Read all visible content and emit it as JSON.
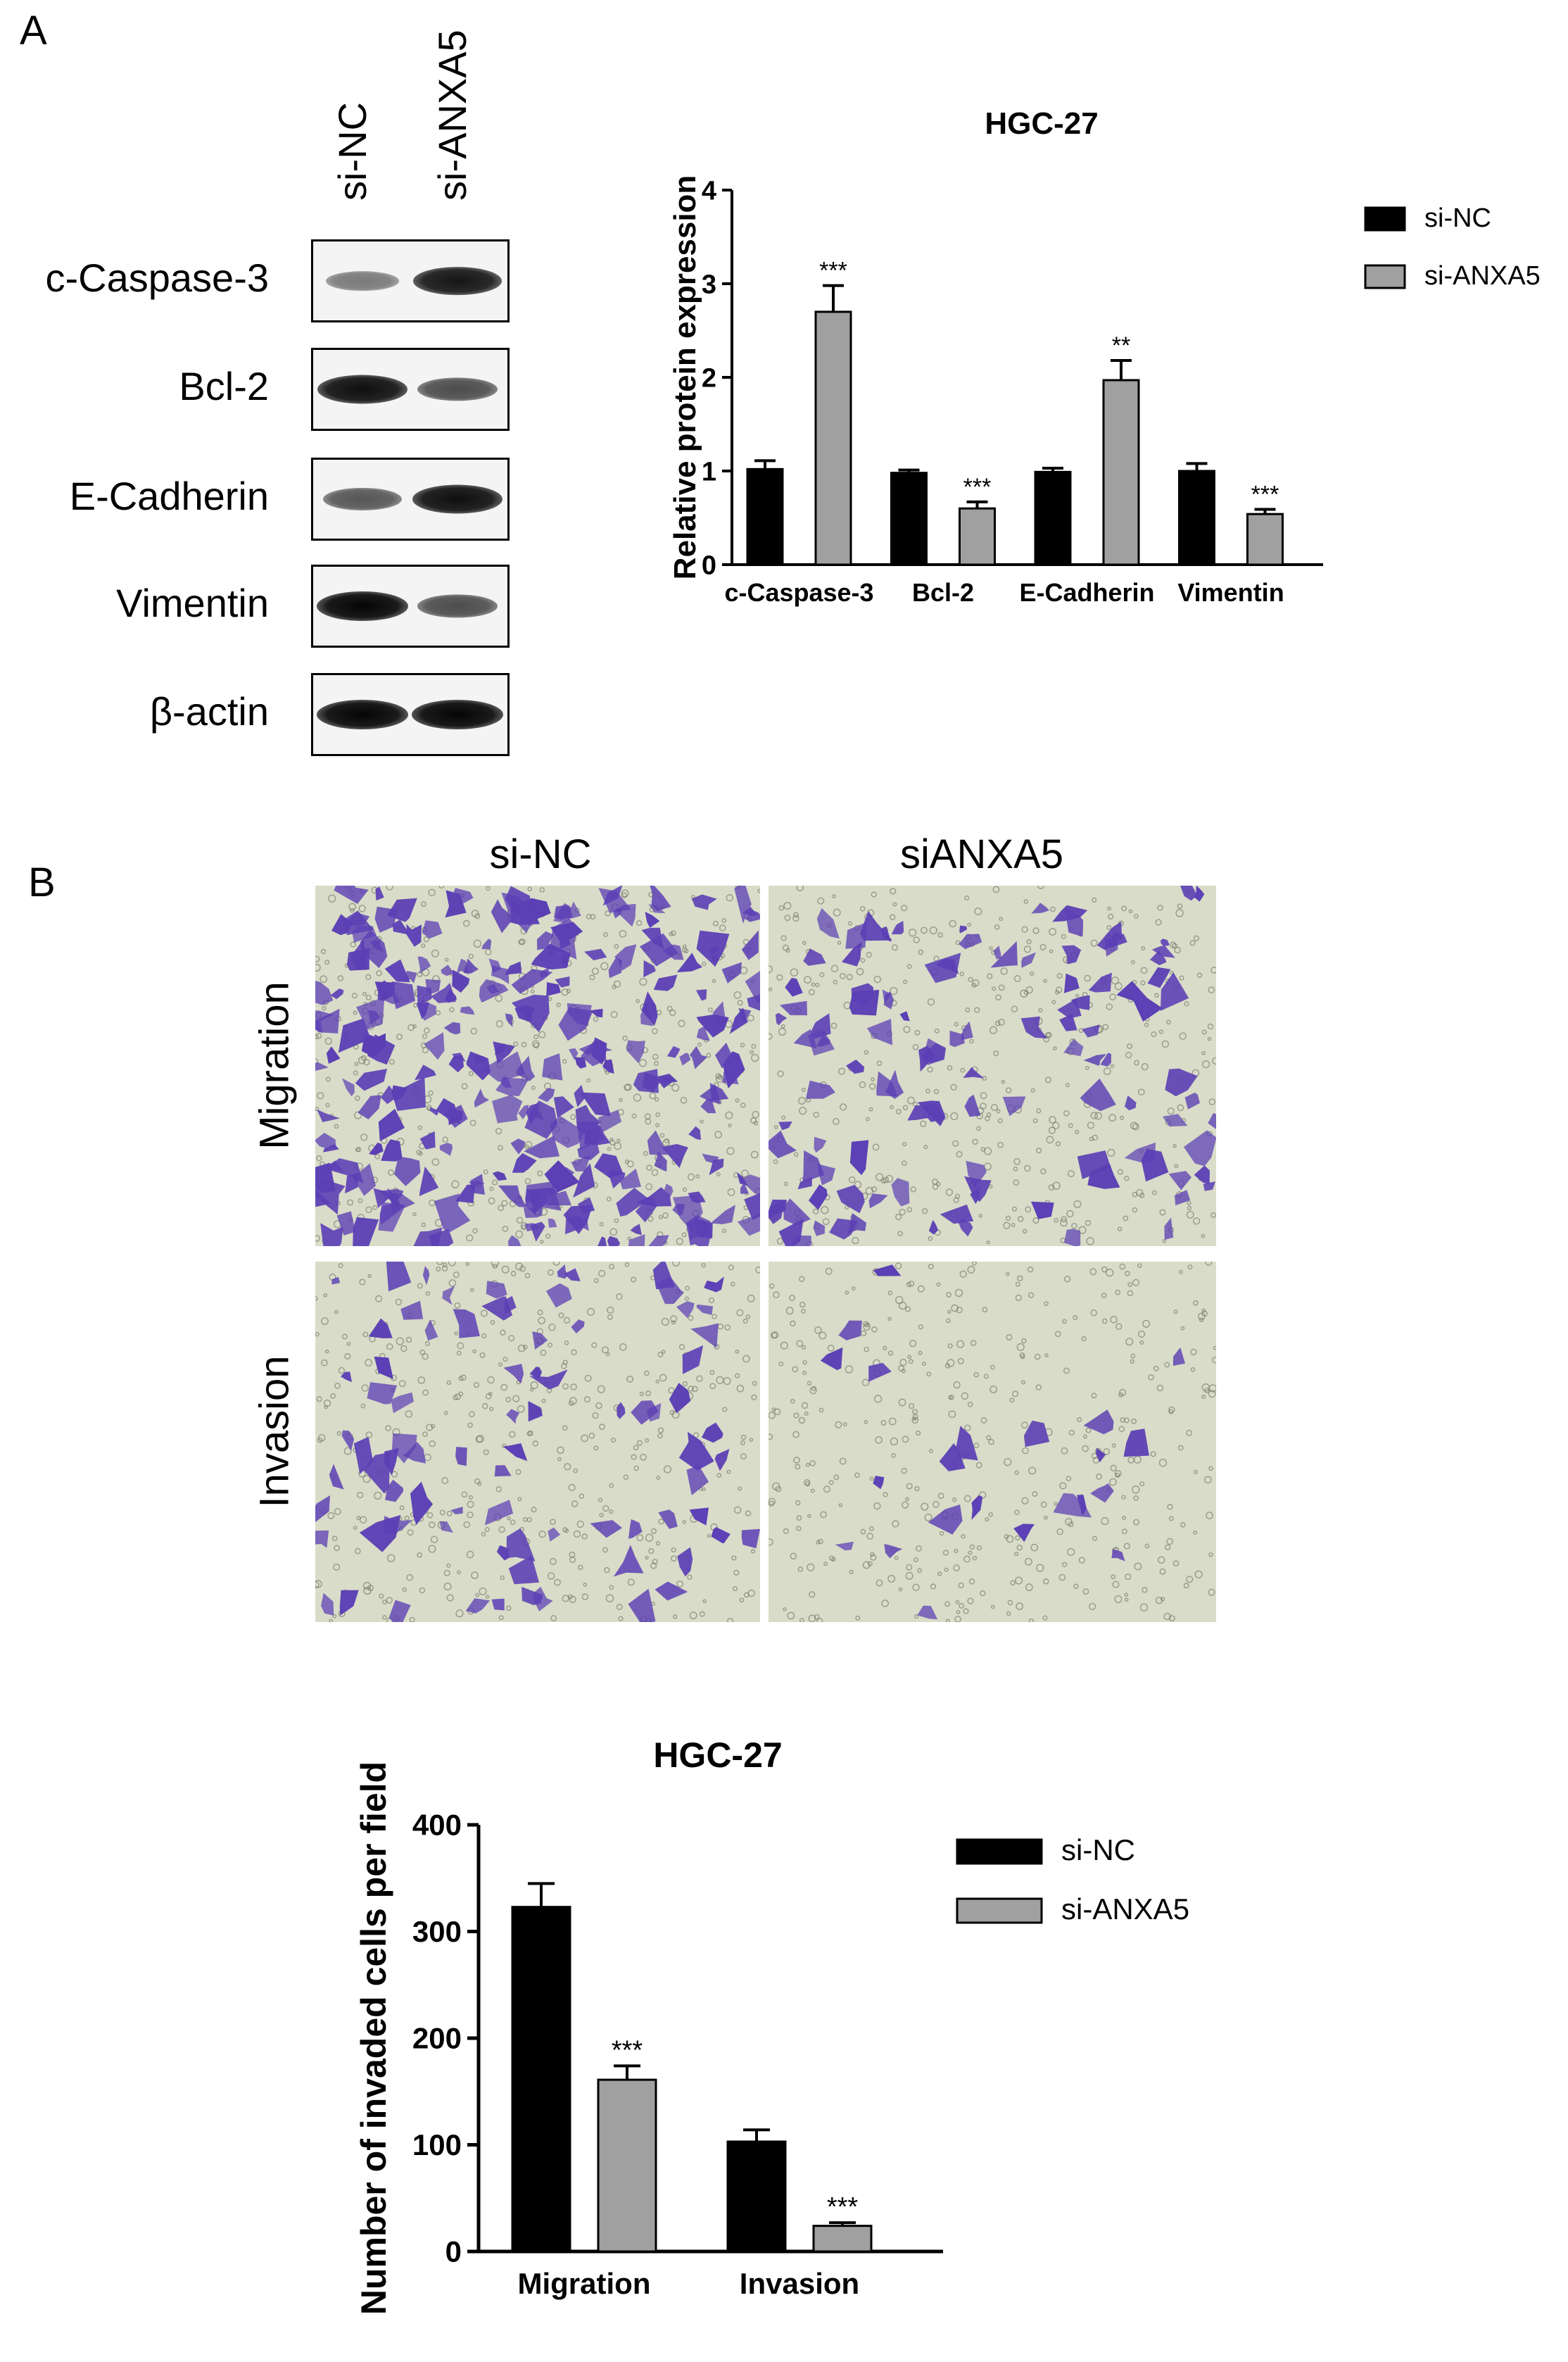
{
  "panel_a": {
    "letter": "A",
    "lanes": [
      "si-NC",
      "si-ANXA5"
    ],
    "blots": [
      {
        "protein": "c-Caspase-3",
        "band_intensity": [
          0.35,
          0.9
        ]
      },
      {
        "protein": "Bcl-2",
        "band_intensity": [
          0.95,
          0.6
        ]
      },
      {
        "protein": "E-Cadherin",
        "band_intensity": [
          0.55,
          0.95
        ]
      },
      {
        "protein": "Vimentin",
        "band_intensity": [
          1.0,
          0.6
        ]
      },
      {
        "protein": "β-actin",
        "band_intensity": [
          1.0,
          1.0
        ]
      }
    ]
  },
  "panel_b": {
    "letter": "B",
    "columns": [
      "si-NC",
      "siANXA5"
    ],
    "rows": [
      "Migration",
      "Invasion"
    ],
    "image_colors": {
      "background": "#d9dcc8",
      "stain": "#5b3fb5"
    }
  },
  "chart_data": [
    {
      "type": "bar",
      "title": "HGC-27",
      "xlabel": "",
      "ylabel": "Relative protein expression",
      "categories": [
        "c-Caspase-3",
        "Bcl-2",
        "E-Cadherin",
        "Vimentin"
      ],
      "ylim": [
        0,
        4
      ],
      "yticks": [
        "0",
        "1",
        "2",
        "3",
        "4"
      ],
      "series": [
        {
          "name": "si-NC",
          "color": "#000000",
          "values": [
            1.02,
            0.98,
            0.99,
            1.0
          ],
          "errors": [
            0.09,
            0.03,
            0.04,
            0.08
          ]
        },
        {
          "name": "si-ANXA5",
          "color": "#a0a0a0",
          "values": [
            2.7,
            0.6,
            1.97,
            0.54
          ],
          "errors": [
            0.28,
            0.07,
            0.21,
            0.05
          ]
        }
      ],
      "significance": [
        [
          "",
          "***"
        ],
        [
          "",
          "***"
        ],
        [
          "",
          "**"
        ],
        [
          "",
          "***"
        ]
      ],
      "legend_position": "top-right"
    },
    {
      "type": "bar",
      "title": "HGC-27",
      "xlabel": "",
      "ylabel": "Number of invaded cells per field",
      "categories": [
        "Migration",
        "Invasion"
      ],
      "ylim": [
        0,
        400
      ],
      "yticks": [
        "0",
        "100",
        "200",
        "300",
        "400"
      ],
      "series": [
        {
          "name": "si-NC",
          "color": "#000000",
          "values": [
            323,
            103
          ],
          "errors": [
            22,
            11
          ]
        },
        {
          "name": "si-ANXA5",
          "color": "#a0a0a0",
          "values": [
            161,
            24
          ],
          "errors": [
            13,
            3
          ]
        }
      ],
      "significance": [
        [
          "",
          "***"
        ],
        [
          "",
          "***"
        ]
      ],
      "legend_position": "top-right"
    }
  ]
}
